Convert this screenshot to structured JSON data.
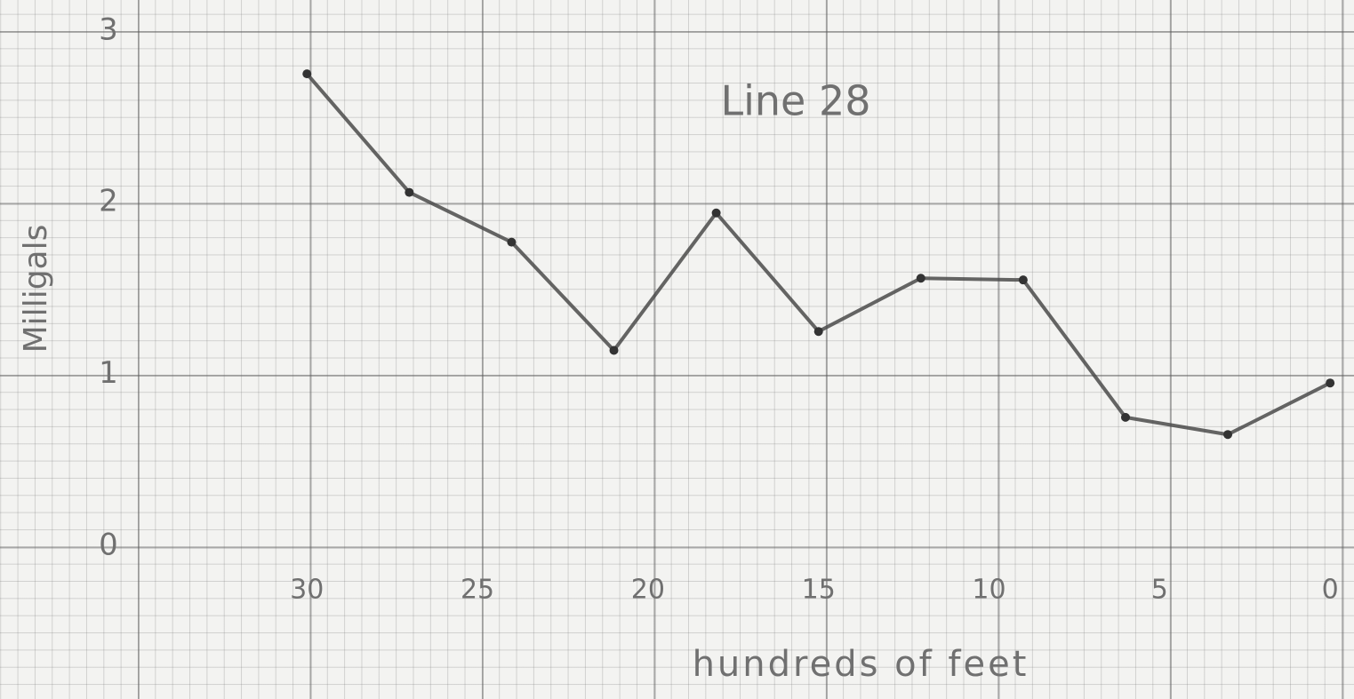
{
  "chart_data": {
    "type": "line",
    "title": "Line 28",
    "x_label": "hundreds of feet",
    "y_label": "Milligals",
    "x": [
      30,
      27,
      24,
      21,
      18,
      15,
      12,
      9,
      6,
      3,
      0
    ],
    "series": [
      {
        "color": "#4a4a4a",
        "values": [
          2.75,
          2.06,
          1.77,
          1.14,
          1.94,
          1.25,
          1.56,
          1.55,
          0.75,
          0.65,
          0.95
        ]
      }
    ],
    "xlim": [
      39,
      -0.7
    ],
    "xticks": [
      30,
      25,
      20,
      15,
      10,
      5,
      0
    ],
    "ylim": [
      -0.89,
      3.18
    ],
    "yticks": [
      0,
      1,
      2,
      3
    ]
  }
}
